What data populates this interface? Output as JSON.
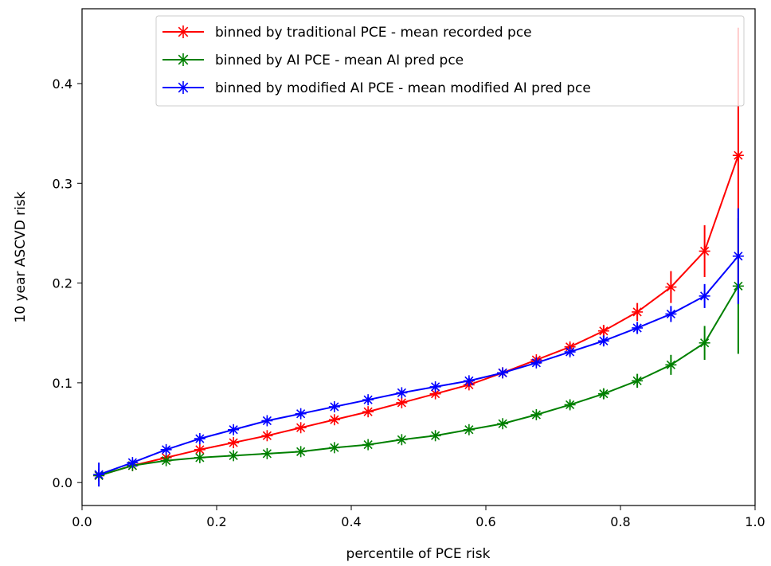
{
  "chart_data": {
    "type": "line",
    "title": "",
    "xlabel": "percentile of PCE risk",
    "ylabel": "10 year ASCVD risk",
    "xlim": [
      0.0,
      1.0
    ],
    "ylim": [
      -0.023,
      0.475
    ],
    "xticks": [
      0.0,
      0.2,
      0.4,
      0.6,
      0.8,
      1.0
    ],
    "xtick_labels": [
      "0.0",
      "0.2",
      "0.4",
      "0.6",
      "0.8",
      "1.0"
    ],
    "yticks": [
      0.0,
      0.1,
      0.2,
      0.3,
      0.4
    ],
    "ytick_labels": [
      "0.0",
      "0.1",
      "0.2",
      "0.3",
      "0.4"
    ],
    "grid": false,
    "legend_position": "top-right",
    "x": [
      0.025,
      0.075,
      0.125,
      0.175,
      0.225,
      0.275,
      0.325,
      0.375,
      0.425,
      0.475,
      0.525,
      0.575,
      0.625,
      0.675,
      0.725,
      0.775,
      0.825,
      0.875,
      0.925,
      0.975
    ],
    "series": [
      {
        "name": "binned by traditional PCE - mean recorded pce",
        "color": "#ff0000",
        "marker": "asterisk",
        "values": [
          0.007,
          0.017,
          0.025,
          0.033,
          0.04,
          0.047,
          0.055,
          0.063,
          0.071,
          0.08,
          0.089,
          0.098,
          0.11,
          0.123,
          0.136,
          0.152,
          0.171,
          0.196,
          0.232,
          0.328
        ],
        "errors": [
          0.002,
          0.002,
          0.002,
          0.002,
          0.002,
          0.002,
          0.002,
          0.002,
          0.002,
          0.002,
          0.002,
          0.002,
          0.003,
          0.003,
          0.004,
          0.006,
          0.009,
          0.016,
          0.026,
          0.128
        ]
      },
      {
        "name": "binned by AI PCE - mean AI pred pce",
        "color": "#008000",
        "marker": "asterisk",
        "values": [
          0.007,
          0.017,
          0.022,
          0.025,
          0.027,
          0.029,
          0.031,
          0.035,
          0.038,
          0.043,
          0.047,
          0.053,
          0.059,
          0.068,
          0.078,
          0.089,
          0.102,
          0.118,
          0.14,
          0.197
        ],
        "errors": [
          0.002,
          0.002,
          0.002,
          0.002,
          0.002,
          0.002,
          0.002,
          0.002,
          0.002,
          0.002,
          0.002,
          0.002,
          0.002,
          0.003,
          0.004,
          0.005,
          0.007,
          0.01,
          0.017,
          0.068
        ]
      },
      {
        "name": "binned by modified AI PCE - mean modified AI pred pce",
        "color": "#0000ff",
        "marker": "asterisk",
        "values": [
          0.008,
          0.02,
          0.033,
          0.044,
          0.053,
          0.062,
          0.069,
          0.076,
          0.083,
          0.09,
          0.096,
          0.102,
          0.11,
          0.12,
          0.131,
          0.142,
          0.155,
          0.169,
          0.187,
          0.227
        ],
        "errors": [
          0.012,
          0.003,
          0.003,
          0.003,
          0.003,
          0.003,
          0.003,
          0.003,
          0.003,
          0.003,
          0.003,
          0.003,
          0.003,
          0.003,
          0.004,
          0.005,
          0.006,
          0.008,
          0.012,
          0.048
        ]
      }
    ]
  }
}
